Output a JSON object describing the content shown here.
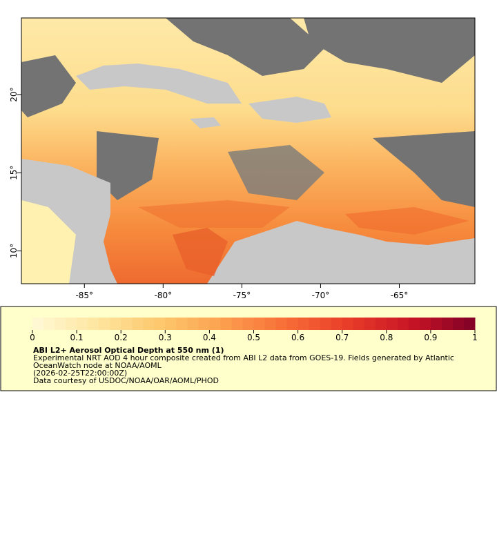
{
  "map": {
    "xlim": [
      -89,
      -60.2
    ],
    "ylim": [
      7.9,
      24.9
    ],
    "xticks": [
      {
        "value": -85,
        "label": "-85°"
      },
      {
        "value": -80,
        "label": "-80°"
      },
      {
        "value": -75,
        "label": "-75°"
      },
      {
        "value": -70,
        "label": "-70°"
      },
      {
        "value": -65,
        "label": "-65°"
      }
    ],
    "yticks": [
      {
        "value": 10,
        "label": "10°"
      },
      {
        "value": 15,
        "label": "15°"
      },
      {
        "value": 20,
        "label": "20°"
      }
    ]
  },
  "colorbar": {
    "lim": [
      0,
      1
    ],
    "ticks": [
      0,
      0.1,
      0.2,
      0.3,
      0.4,
      0.5,
      0.6,
      0.7,
      0.8,
      0.9,
      1
    ]
  },
  "legend": {
    "title": "ABI L2+ Aerosol Optical Depth at 550 nm (1)",
    "lines": [
      "Experimental NRT AOD 4 hour composite created from ABI L2 data from GOES-19. Fields generated by Atlantic",
      "OceanWatch node at NOAA/AOML",
      "(2026-02-25T22:00:00Z)",
      "Data courtesy of USDOC/NOAA/OAR/AOML/PHOD"
    ]
  }
}
